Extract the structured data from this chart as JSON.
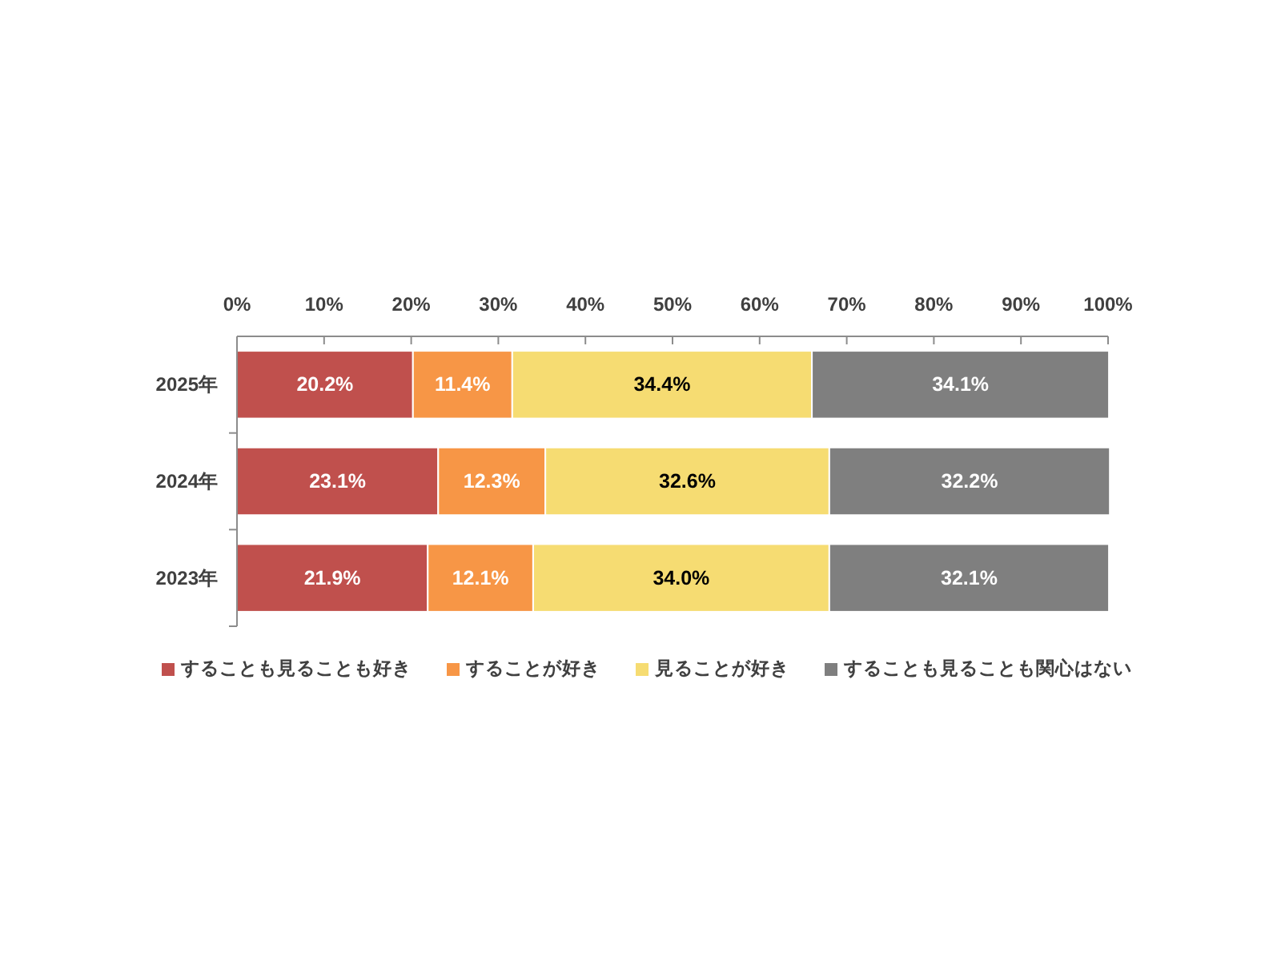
{
  "chart_data": {
    "type": "bar",
    "orientation": "horizontal",
    "stacked": true,
    "categories": [
      "2025年",
      "2024年",
      "2023年"
    ],
    "series": [
      {
        "name": "することも見ることも好き",
        "color": "#c0504d",
        "values": [
          20.2,
          23.1,
          21.9
        ],
        "value_labels": [
          "20.2%",
          "23.1%",
          "21.9%"
        ]
      },
      {
        "name": "することが好き",
        "color": "#f79646",
        "values": [
          11.4,
          12.3,
          12.1
        ],
        "value_labels": [
          "11.4%",
          "12.3%",
          "12.1%"
        ]
      },
      {
        "name": "見ることが好き",
        "color": "#f6dc72",
        "values": [
          34.4,
          32.6,
          34.0
        ],
        "value_labels": [
          "34.4%",
          "32.6%",
          "34.0%"
        ]
      },
      {
        "name": "することも見ることも関心はない",
        "color": "#7f7f7f",
        "values": [
          34.1,
          32.2,
          32.1
        ],
        "value_labels": [
          "34.1%",
          "32.2%",
          "32.1%"
        ]
      }
    ],
    "xlim": [
      0,
      100
    ],
    "xticks": [
      {
        "value": 0,
        "label": "0%"
      },
      {
        "value": 10,
        "label": "10%"
      },
      {
        "value": 20,
        "label": "20%"
      },
      {
        "value": 30,
        "label": "30%"
      },
      {
        "value": 40,
        "label": "40%"
      },
      {
        "value": 50,
        "label": "50%"
      },
      {
        "value": 60,
        "label": "60%"
      },
      {
        "value": 70,
        "label": "70%"
      },
      {
        "value": 80,
        "label": "80%"
      },
      {
        "value": 90,
        "label": "90%"
      },
      {
        "value": 100,
        "label": "100%"
      }
    ],
    "grid": false,
    "legend": "bottom"
  }
}
